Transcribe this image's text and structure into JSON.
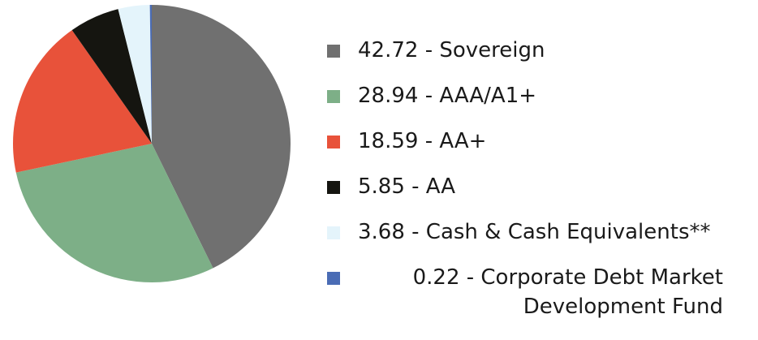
{
  "chart_data": {
    "type": "pie",
    "categories": [
      "42.72 - Sovereign",
      "28.94 - AAA/A1+",
      "18.59 - AA+",
      "5.85 - AA",
      "3.68 - Cash & Cash Equivalents**",
      "0.22 - Corporate Debt Market Development Fund"
    ],
    "values": [
      42.72,
      28.94,
      18.59,
      5.85,
      3.68,
      0.22
    ],
    "colors": [
      "#707070",
      "#7daf87",
      "#e8523a",
      "#151510",
      "#e4f4fb",
      "#4a6cb5"
    ]
  }
}
